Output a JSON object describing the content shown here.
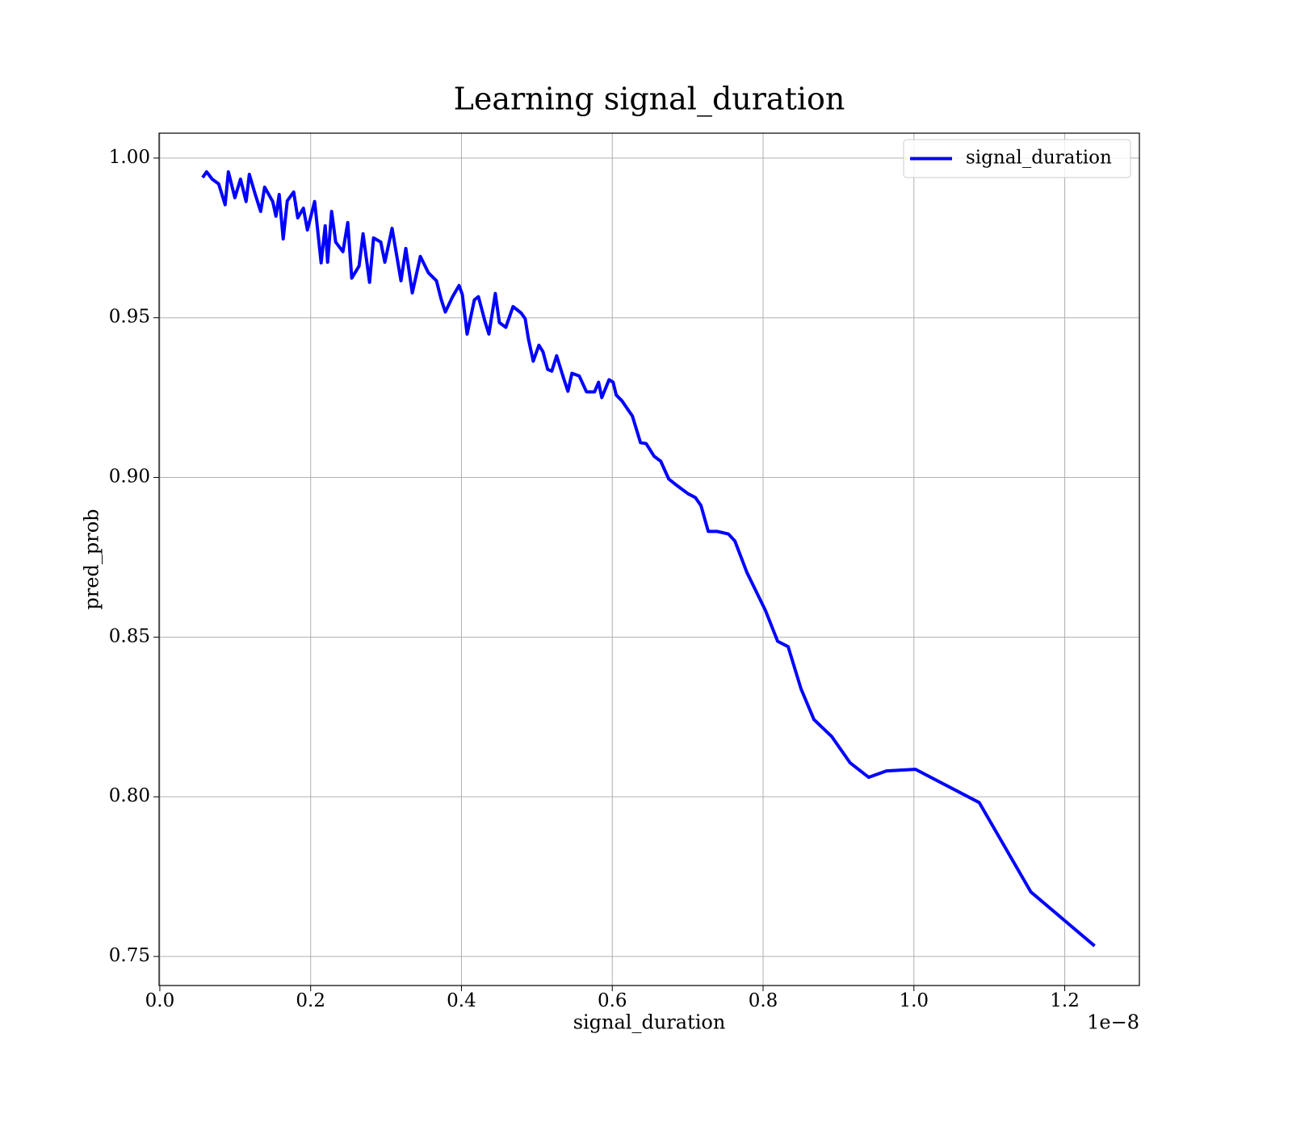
{
  "chart_data": {
    "type": "line",
    "title": "Learning signal_duration",
    "x_label": "signal_duration",
    "y_label": "pred_prob",
    "x_offset_label": "1e−8",
    "x": [
      0.0567,
      0.062,
      0.0695,
      0.0781,
      0.0866,
      0.0909,
      0.0995,
      0.107,
      0.1144,
      0.1187,
      0.1262,
      0.1337,
      0.139,
      0.1497,
      0.154,
      0.1583,
      0.1636,
      0.169,
      0.1775,
      0.1829,
      0.1904,
      0.1957,
      0.2053,
      0.2139,
      0.2193,
      0.2225,
      0.2278,
      0.2332,
      0.2428,
      0.2492,
      0.2545,
      0.2642,
      0.2695,
      0.2781,
      0.2834,
      0.293,
      0.2984,
      0.308,
      0.3198,
      0.3262,
      0.3348,
      0.3455,
      0.3561,
      0.3668,
      0.3733,
      0.3786,
      0.3882,
      0.3968,
      0.4011,
      0.4075,
      0.4171,
      0.4225,
      0.431,
      0.4364,
      0.4449,
      0.4503,
      0.4588,
      0.4684,
      0.4791,
      0.4845,
      0.4888,
      0.4952,
      0.5027,
      0.508,
      0.5144,
      0.5198,
      0.5262,
      0.5358,
      0.5412,
      0.5465,
      0.5561,
      0.5658,
      0.5765,
      0.5818,
      0.5861,
      0.5957,
      0.6011,
      0.6053,
      0.6128,
      0.6267,
      0.6374,
      0.6449,
      0.6556,
      0.6642,
      0.6749,
      0.6856,
      0.7005,
      0.7102,
      0.7176,
      0.7273,
      0.739,
      0.754,
      0.7626,
      0.7786,
      0.8032,
      0.8193,
      0.8332,
      0.8503,
      0.8674,
      0.8909,
      0.9155,
      0.9401,
      0.9636,
      1.0021,
      1.0866,
      1.1551,
      1.2396
    ],
    "series": [
      {
        "name": "signal_duration",
        "color": "#0000ff",
        "values": [
          0.9939,
          0.9957,
          0.9934,
          0.9919,
          0.9854,
          0.9957,
          0.9876,
          0.9934,
          0.9864,
          0.9949,
          0.9889,
          0.9833,
          0.9909,
          0.9864,
          0.9818,
          0.9886,
          0.9747,
          0.9866,
          0.9894,
          0.9813,
          0.9843,
          0.9775,
          0.9864,
          0.9672,
          0.9788,
          0.9674,
          0.9833,
          0.9737,
          0.9707,
          0.9798,
          0.9624,
          0.9662,
          0.9763,
          0.9611,
          0.975,
          0.9737,
          0.9674,
          0.978,
          0.9616,
          0.9717,
          0.9578,
          0.9692,
          0.9641,
          0.9616,
          0.9556,
          0.9518,
          0.9566,
          0.9601,
          0.9573,
          0.9449,
          0.9556,
          0.9566,
          0.949,
          0.9449,
          0.9576,
          0.9485,
          0.947,
          0.9535,
          0.9515,
          0.9497,
          0.9434,
          0.9364,
          0.9414,
          0.9394,
          0.9338,
          0.9333,
          0.9381,
          0.9308,
          0.927,
          0.9326,
          0.9318,
          0.9268,
          0.9268,
          0.9298,
          0.925,
          0.9306,
          0.9298,
          0.9258,
          0.924,
          0.9192,
          0.9109,
          0.9106,
          0.9066,
          0.9051,
          0.8995,
          0.8975,
          0.8949,
          0.8937,
          0.8912,
          0.8831,
          0.8831,
          0.8823,
          0.8801,
          0.8702,
          0.8583,
          0.8487,
          0.847,
          0.8338,
          0.8242,
          0.8189,
          0.8106,
          0.8061,
          0.8081,
          0.8086,
          0.7982,
          0.7702,
          0.7533
        ]
      }
    ],
    "xlim": [
      -0.001,
      1.299
    ],
    "ylim": [
      0.7409,
      1.0078
    ],
    "xticks": [
      {
        "value": 0,
        "label": "0.0"
      },
      0.2,
      0.4,
      0.6,
      0.8,
      {
        "value": 1,
        "label": "1.0"
      },
      1.2
    ],
    "yticks": [
      0.75,
      {
        "value": 0.8,
        "label": "0.80"
      },
      0.85,
      {
        "value": 0.9,
        "label": "0.90"
      },
      0.95,
      {
        "value": 1,
        "label": "1.00"
      }
    ],
    "grid": true,
    "legend": "upper right"
  }
}
